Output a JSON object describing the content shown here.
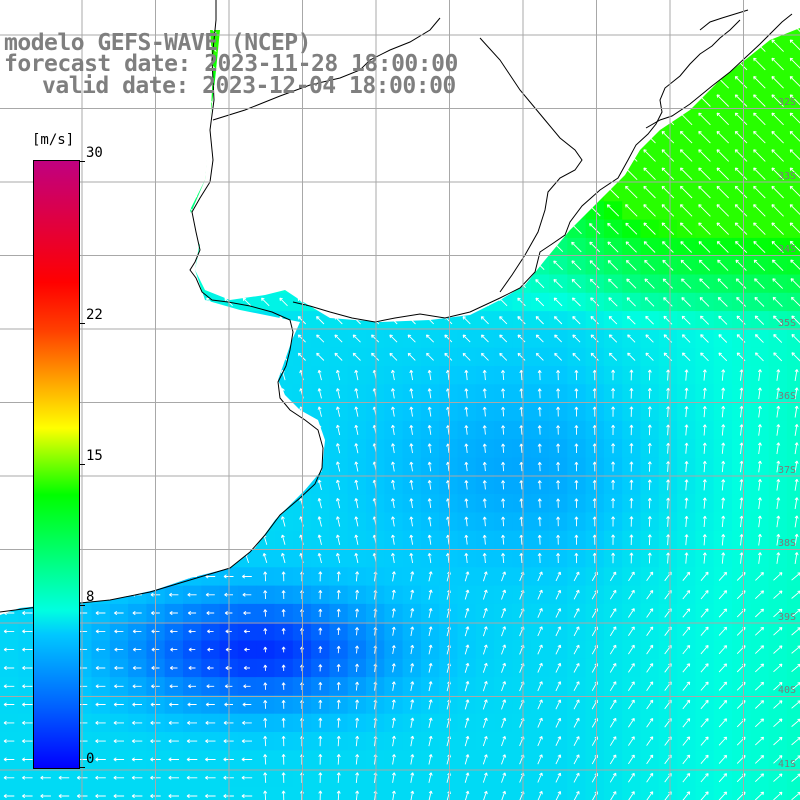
{
  "title": {
    "line1": "modelo GEFS-WAVE (NCEP)",
    "line2": "forecast date: 2023-11-28 18:00:00",
    "line3": "valid date: 2023-12-04 18:00:00"
  },
  "colorbar": {
    "units": "[m/s]",
    "ticks": [
      {
        "value": 30,
        "label": "30"
      },
      {
        "value": 22,
        "label": "22"
      },
      {
        "value": 15,
        "label": "15"
      },
      {
        "value": 8,
        "label": "8"
      },
      {
        "value": 0,
        "label": "0"
      }
    ]
  },
  "map": {
    "field": "wind speed",
    "land_color": "#ffffff",
    "coastline_color": "#000000",
    "grid_color": "#a8a8a8",
    "lat_labels": [
      "32S",
      "33S",
      "34S",
      "35S",
      "36S",
      "37S",
      "38S",
      "39S",
      "40S",
      "41S"
    ]
  }
}
